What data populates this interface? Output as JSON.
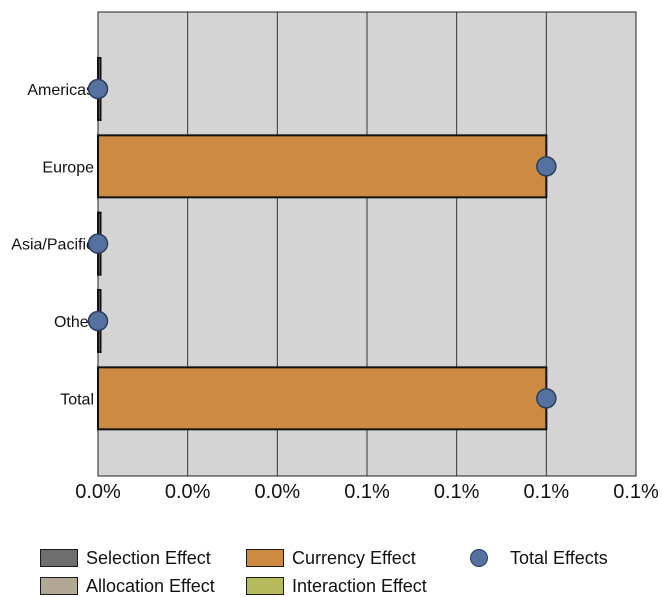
{
  "chart_data": {
    "type": "bar",
    "orientation": "horizontal",
    "categories": [
      "Americas",
      "Europe",
      "Asia/Pacific",
      "Other",
      "Total"
    ],
    "series": [
      {
        "name": "Selection Effect",
        "kind": "bar",
        "color": "#6e6e6e",
        "values": [
          0,
          0,
          0,
          0,
          0
        ]
      },
      {
        "name": "Allocation Effect",
        "kind": "bar",
        "color": "#b3a896",
        "values": [
          0,
          0,
          0,
          0,
          0
        ]
      },
      {
        "name": "Currency Effect",
        "kind": "bar",
        "color": "#cd8a43",
        "values": [
          0.0005,
          0.1,
          0.0005,
          0.0005,
          0.1
        ]
      },
      {
        "name": "Interaction Effect",
        "kind": "bar",
        "color": "#b5bb5c",
        "values": [
          0,
          0,
          0,
          0,
          0
        ]
      },
      {
        "name": "Total Effects",
        "kind": "marker",
        "color": "#56709f",
        "values": [
          0,
          0.1,
          0,
          0,
          0.1
        ]
      }
    ],
    "xlim": [
      0,
      0.12
    ],
    "x_ticks": [
      0,
      0.02,
      0.04,
      0.06,
      0.08,
      0.1,
      0.12
    ],
    "x_tick_labels": [
      "0.0%",
      "0.0%",
      "0.0%",
      "0.1%",
      "0.1%",
      "0.1%",
      "0.1%"
    ],
    "grid": "vertical",
    "background": "#d4d4d4",
    "legend_position": "bottom",
    "title": "",
    "xlabel": "",
    "ylabel": ""
  },
  "legend": {
    "selection": "Selection Effect",
    "currency": "Currency Effect",
    "total": "Total Effects",
    "allocation": "Allocation Effect",
    "interaction": "Interaction Effect"
  }
}
